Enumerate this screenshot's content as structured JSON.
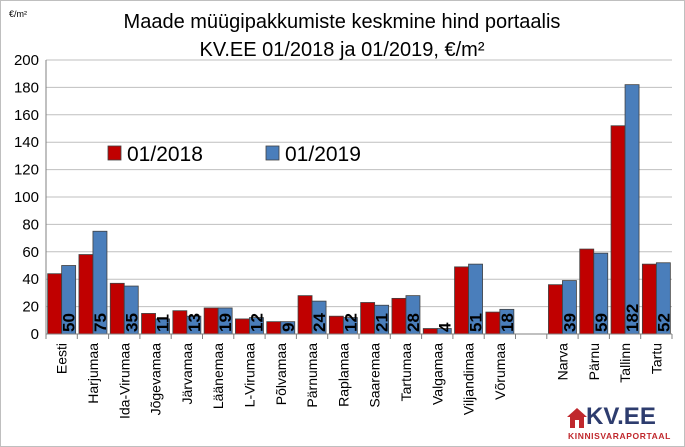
{
  "chart_data": {
    "type": "bar",
    "title_line1": "Maade müügipakkumiste keskmine hind portaalis",
    "title_line2": "KV.EE 01/2018 ja 01/2019, €/m²",
    "ylabel": "€/m²",
    "ylim": [
      0,
      200
    ],
    "yticks": [
      "0",
      "20",
      "40",
      "60",
      "80",
      "100",
      "120",
      "140",
      "160",
      "180",
      "200"
    ],
    "grid": true,
    "legend": "center-left",
    "categories": [
      "Eesti",
      "Harjumaa",
      "Ida-Virumaa",
      "Jõgevamaa",
      "Järvamaa",
      "Läänemaa",
      "L-Virumaa",
      "Põlvamaa",
      "Pärnumaa",
      "Raplamaa",
      "Saaremaa",
      "Tartumaa",
      "Valgamaa",
      "Viljandimaa",
      "Võrumaa",
      "",
      "Narva",
      "Pärnu",
      "Tallinn",
      "Tartu"
    ],
    "series": [
      {
        "name": "01/2018",
        "color": "#c00000",
        "values": [
          44,
          58,
          37,
          15,
          17,
          19,
          11,
          9,
          28,
          13,
          23,
          26,
          4,
          49,
          16,
          null,
          36,
          62,
          152,
          51
        ]
      },
      {
        "name": "01/2019",
        "color": "#4a7ebb",
        "values": [
          50,
          75,
          35,
          11,
          13,
          19,
          12,
          9,
          24,
          12,
          21,
          28,
          4,
          51,
          18,
          null,
          39,
          59,
          182,
          52
        ]
      }
    ],
    "data_labels": [
      "50",
      "75",
      "35",
      "11",
      "13",
      "19",
      "12",
      "9",
      "24",
      "12",
      "21",
      "28",
      "4",
      "51",
      "18",
      "",
      "39",
      "59",
      "182",
      "52"
    ]
  },
  "logo": {
    "main": "KV.EE",
    "sub": "KINNISVARAPORTAAL"
  }
}
